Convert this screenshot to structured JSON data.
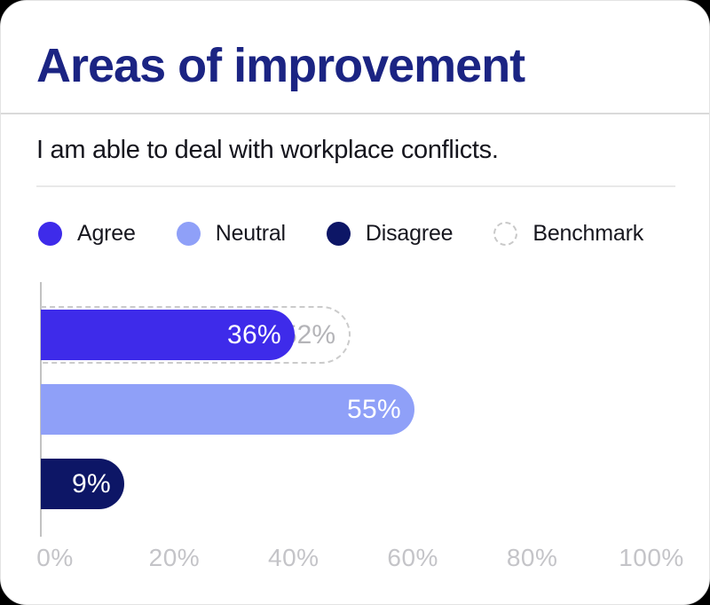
{
  "card": {
    "title": "Areas of improvement",
    "question": "I am able to deal with workplace conflicts."
  },
  "legend": {
    "position": "top",
    "items": [
      {
        "label": "Agree",
        "swatch": "dot",
        "color": "#3E2BEA"
      },
      {
        "label": "Neutral",
        "swatch": "dot",
        "color": "#8FA0F8"
      },
      {
        "label": "Disagree",
        "swatch": "dot",
        "color": "#0D1666"
      },
      {
        "label": "Benchmark",
        "swatch": "dashed-circle",
        "color": "#C9C9C9"
      }
    ]
  },
  "chart_data": {
    "type": "bar",
    "orientation": "horizontal",
    "title": "Areas of improvement",
    "subtitle": "I am able to deal with workplace conflicts.",
    "categories": [
      "Agree",
      "Neutral",
      "Disagree"
    ],
    "values": [
      36,
      55,
      9
    ],
    "value_labels": [
      "36%",
      "55%",
      "9%"
    ],
    "bar_colors": [
      "#3E2BEA",
      "#8FA0F8",
      "#0D1666"
    ],
    "benchmark": {
      "applies_to": "Agree",
      "value": 52,
      "label": "52%"
    },
    "x_ticks": [
      0,
      20,
      40,
      60,
      80,
      100
    ],
    "x_tick_labels": [
      "0%",
      "20%",
      "40%",
      "60%",
      "80%",
      "100%"
    ],
    "xlim": [
      0,
      100
    ],
    "grid": false,
    "legend_position": "top"
  },
  "colors": {
    "title": "#1B2483",
    "text": "#15151D",
    "axis": "#C2C2C2",
    "tick_label": "#C4C4C8",
    "benchmark_dash": "#CBCBCB",
    "benchmark_label": "#B4B4B8",
    "card_background": "#FFFFFF",
    "page_background": "#000000"
  }
}
